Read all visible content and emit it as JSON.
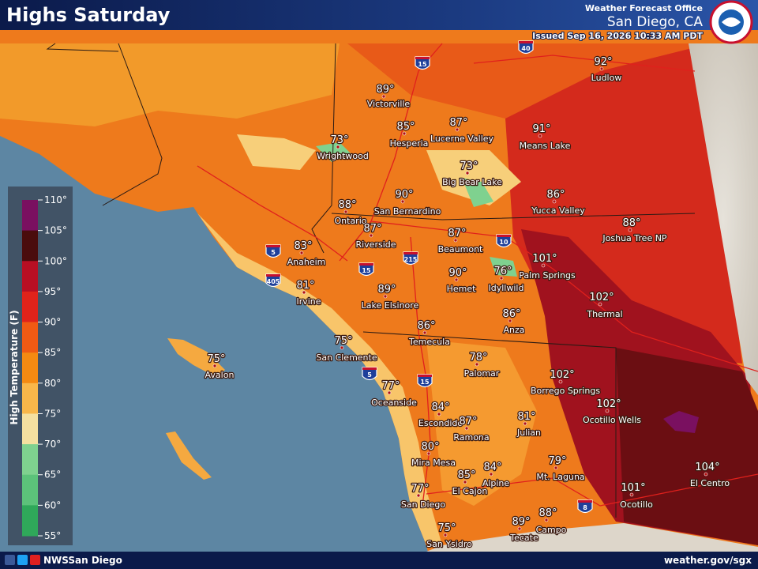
{
  "header": {
    "title": "Highs Saturday",
    "office": "Weather Forecast Office",
    "location": "San Diego, CA",
    "issued": "Issued Sep 16, 2026 10:33 AM PDT"
  },
  "legend": {
    "title": "High Temperature (F)",
    "labels": [
      "110°",
      "105°",
      "100°",
      "95°",
      "90°",
      "85°",
      "80°",
      "75°",
      "70°",
      "65°",
      "60°",
      "55°"
    ]
  },
  "cities": [
    {
      "name": "Ludlow",
      "temp": "92°"
    },
    {
      "name": "Victorville",
      "temp": "89°"
    },
    {
      "name": "Hesperia",
      "temp": "85°"
    },
    {
      "name": "Lucerne Valley",
      "temp": "87°"
    },
    {
      "name": "Means Lake",
      "temp": "91°"
    },
    {
      "name": "Wrightwood",
      "temp": "73°"
    },
    {
      "name": "Big Bear Lake",
      "temp": "73°"
    },
    {
      "name": "San Bernardino",
      "temp": "90°"
    },
    {
      "name": "Yucca Valley",
      "temp": "86°"
    },
    {
      "name": "Joshua Tree NP",
      "temp": "88°"
    },
    {
      "name": "Ontario",
      "temp": "88°"
    },
    {
      "name": "Riverside",
      "temp": "87°"
    },
    {
      "name": "Beaumont",
      "temp": "87°"
    },
    {
      "name": "Anaheim",
      "temp": "83°"
    },
    {
      "name": "Palm Springs",
      "temp": "101°"
    },
    {
      "name": "Hemet",
      "temp": "90°"
    },
    {
      "name": "Idyllwild",
      "temp": "76°"
    },
    {
      "name": "Irvine",
      "temp": "81°"
    },
    {
      "name": "Lake Elsinore",
      "temp": "89°"
    },
    {
      "name": "Thermal",
      "temp": "102°"
    },
    {
      "name": "Anza",
      "temp": "86°"
    },
    {
      "name": "Temecula",
      "temp": "86°"
    },
    {
      "name": "San Clemente",
      "temp": "75°"
    },
    {
      "name": "Avalon",
      "temp": "75°"
    },
    {
      "name": "Palomar",
      "temp": "78°"
    },
    {
      "name": "Borrego Springs",
      "temp": "102°"
    },
    {
      "name": "Oceanside",
      "temp": "77°"
    },
    {
      "name": "Ocotillo Wells",
      "temp": "102°"
    },
    {
      "name": "Escondido",
      "temp": "84°"
    },
    {
      "name": "Ramona",
      "temp": "87°"
    },
    {
      "name": "Julian",
      "temp": "81°"
    },
    {
      "name": "Mira Mesa",
      "temp": "80°"
    },
    {
      "name": "El Cajon",
      "temp": "85°"
    },
    {
      "name": "Alpine",
      "temp": "84°"
    },
    {
      "name": "Mt. Laguna",
      "temp": "79°"
    },
    {
      "name": "Ocotillo",
      "temp": "101°"
    },
    {
      "name": "El Centro",
      "temp": "104°"
    },
    {
      "name": "San Diego",
      "temp": "77°"
    },
    {
      "name": "Campo",
      "temp": "88°"
    },
    {
      "name": "Tecate",
      "temp": "89°"
    },
    {
      "name": "San Ysidro",
      "temp": "75°"
    }
  ],
  "highways": [
    "15",
    "40",
    "10",
    "5",
    "405",
    "215",
    "15",
    "5",
    "15",
    "8"
  ],
  "footer": {
    "social": "NWSSan Diego",
    "url": "weather.gov/sgx"
  }
}
